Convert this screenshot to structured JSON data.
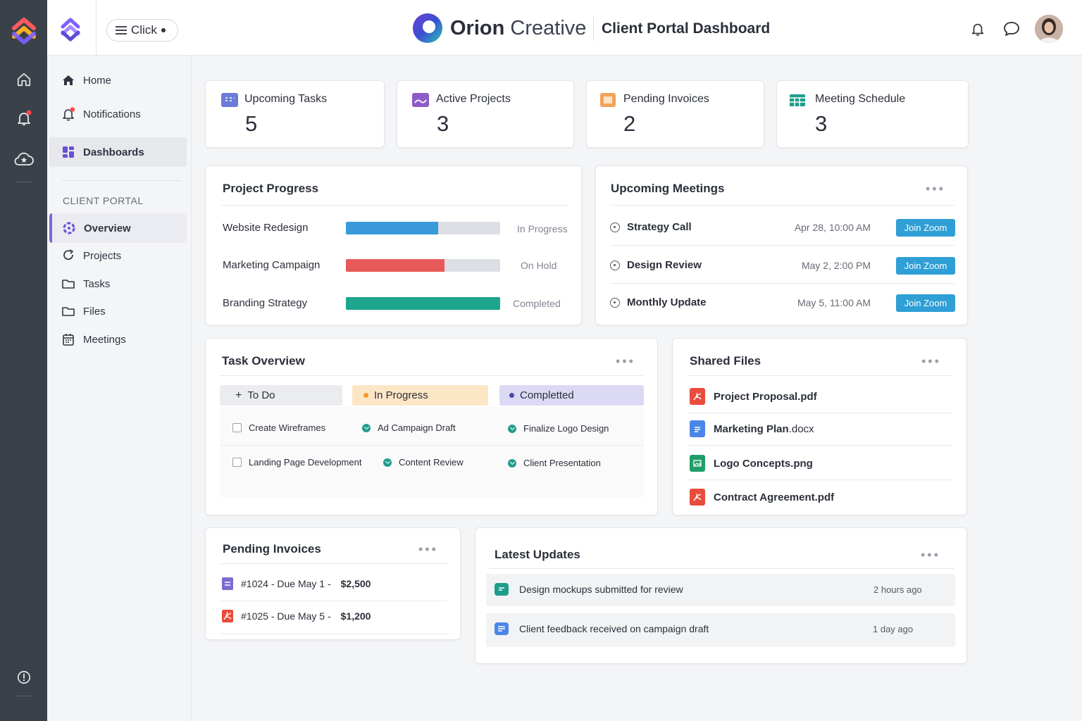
{
  "topbar": {
    "click_label": "Click",
    "brand_bold": "Orion",
    "brand_light": "Creative",
    "page_title": "Client Portal Dashboard"
  },
  "sidebar": {
    "items": [
      {
        "label": "Home",
        "icon": "home-icon"
      },
      {
        "label": "Notifications",
        "icon": "bell-icon"
      },
      {
        "label": "Dashboards",
        "icon": "dashboard-icon"
      }
    ],
    "section_heading": "CLIENT PORTAL",
    "portal_items": [
      {
        "label": "Overview",
        "icon": "overview-icon"
      },
      {
        "label": "Projects",
        "icon": "projects-icon"
      },
      {
        "label": "Tasks",
        "icon": "folder-icon"
      },
      {
        "label": "Files",
        "icon": "folder-icon"
      },
      {
        "label": "Meetings",
        "icon": "calendar-icon"
      }
    ]
  },
  "stats": [
    {
      "title": "Upcoming Tasks",
      "value": "5",
      "color": "#6c7bd8"
    },
    {
      "title": "Active Projects",
      "value": "3",
      "color": "#8e5cc9"
    },
    {
      "title": "Pending Invoices",
      "value": "2",
      "color": "#f0a35a"
    },
    {
      "title": "Meeting Schedule",
      "value": "3",
      "color": "#1f9e8a"
    }
  ],
  "project_progress": {
    "title": "Project Progress",
    "projects": [
      {
        "name": "Website Redesign",
        "status": "In Progress",
        "progress": 0.6,
        "color": "#3a9ad9"
      },
      {
        "name": "Marketing Campaign",
        "status": "On Hold",
        "progress": 0.64,
        "color": "#e85a5a"
      },
      {
        "name": "Branding Strategy",
        "status": "Completed",
        "progress": 1.0,
        "color": "#1ea58e"
      }
    ]
  },
  "meetings": {
    "title": "Upcoming Meetings",
    "items": [
      {
        "name": "Strategy Call",
        "time": "Apr 28, 10:00 AM",
        "button": "Join Zoom"
      },
      {
        "name": "Design Review",
        "time": "May 2,  2:00 PM",
        "button": "Join Zoom"
      },
      {
        "name": "Monthly Update",
        "time": "May 5,  11:00 AM",
        "button": "Join Zoom"
      }
    ]
  },
  "task_overview": {
    "title": "Task Overview",
    "columns": [
      {
        "label": "To Do",
        "items": [
          "Create Wireframes",
          "Landing Page Development"
        ]
      },
      {
        "label": "In Progress",
        "items": [
          "Ad Campaign Draft",
          "Content Review"
        ]
      },
      {
        "label": "Completted",
        "items": [
          "Finalize Logo Design",
          "Client Presentation"
        ]
      }
    ]
  },
  "shared_files": {
    "title": "Shared Files",
    "files": [
      {
        "name": "Project Proposal",
        "ext": ".pdf",
        "type": "pdf"
      },
      {
        "name": "Marketing Plan",
        "ext": ".docx",
        "type": "doc"
      },
      {
        "name": "Logo Concepts",
        "ext": ".png",
        "type": "img"
      },
      {
        "name": "Contract Agreement",
        "ext": ".pdf",
        "type": "pdf"
      }
    ]
  },
  "pending_invoices": {
    "title": "Pending Invoices",
    "items": [
      {
        "label": "#1024 - Due May 1 -",
        "amount": "$2,500"
      },
      {
        "label": "#1025 - Due May 5 -",
        "amount": "$1,200"
      }
    ]
  },
  "latest_updates": {
    "title": "Latest Updates",
    "items": [
      {
        "text": "Design mockups submitted for review",
        "time": "2 hours ago"
      },
      {
        "text": "Client feedback received on campaign draft",
        "time": "1 day ago"
      }
    ]
  }
}
